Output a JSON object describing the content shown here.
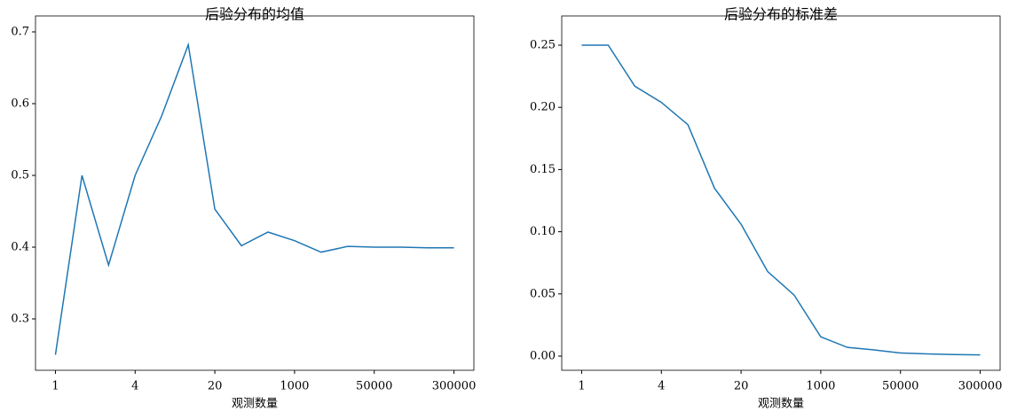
{
  "chart_data": [
    {
      "type": "line",
      "title": "后验分布的均值",
      "xlabel": "观测数量",
      "categories": [
        "1",
        null,
        null,
        "4",
        null,
        null,
        "20",
        null,
        null,
        "1000",
        null,
        null,
        "50000",
        null,
        null,
        "300000"
      ],
      "values": [
        0.25,
        0.5,
        0.375,
        0.5,
        0.583,
        0.682,
        0.453,
        0.402,
        0.421,
        0.409,
        0.393,
        0.401,
        0.4,
        0.4,
        0.399,
        0.399
      ],
      "color": "#1f77b4",
      "ylim": [
        0.2284,
        0.7222
      ],
      "yticks": [
        0.3,
        0.4,
        0.5,
        0.6,
        0.7
      ]
    },
    {
      "type": "line",
      "title": "后验分布的标准差",
      "xlabel": "观测数量",
      "categories": [
        "1",
        null,
        null,
        "4",
        null,
        null,
        "20",
        null,
        null,
        "1000",
        null,
        null,
        "50000",
        null,
        null,
        "300000"
      ],
      "values": [
        0.25,
        0.25,
        0.217,
        0.204,
        0.186,
        0.135,
        0.106,
        0.068,
        0.049,
        0.0155,
        0.007,
        0.005,
        0.0025,
        0.0018,
        0.0012,
        0.001
      ],
      "color": "#1f77b4",
      "ylim": [
        -0.0114,
        0.2735
      ],
      "yticks": [
        {
          "value": 0,
          "label": "0.00"
        },
        0.05,
        {
          "value": 0.1,
          "label": "0.10"
        },
        0.15,
        {
          "value": 0.2,
          "label": "0.20"
        },
        0.25
      ]
    }
  ]
}
